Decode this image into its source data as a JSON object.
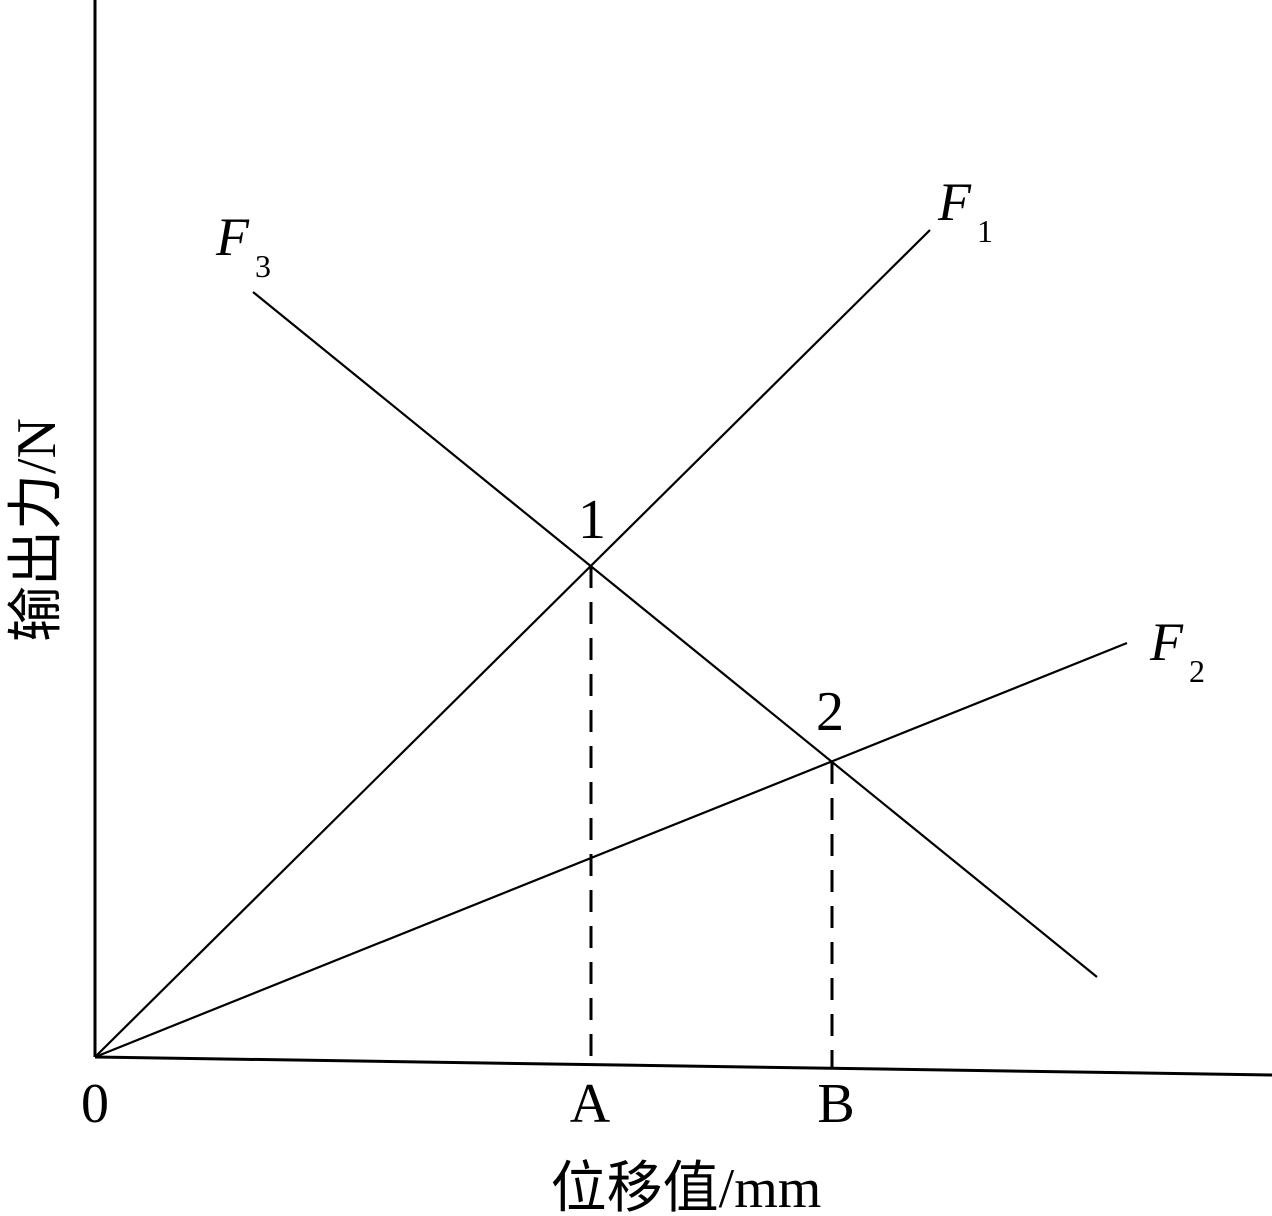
{
  "axes": {
    "y_label": "输出力/N",
    "x_label": "位移值/mm",
    "origin": "0",
    "x_marks": [
      "A",
      "B"
    ]
  },
  "lines": [
    {
      "name": "F",
      "subscript": "1"
    },
    {
      "name": "F",
      "subscript": "2"
    },
    {
      "name": "F",
      "subscript": "3"
    }
  ],
  "points": [
    "1",
    "2"
  ]
}
